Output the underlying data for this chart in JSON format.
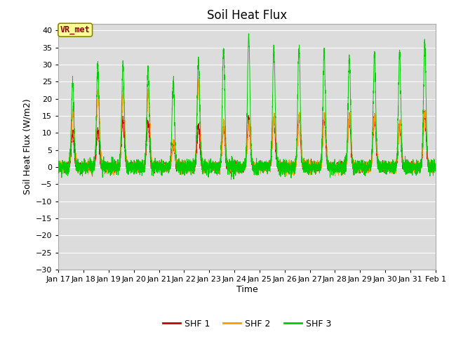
{
  "title": "Soil Heat Flux",
  "ylabel": "Soil Heat Flux (W/m2)",
  "xlabel": "Time",
  "ylim": [
    -30,
    42
  ],
  "yticks": [
    -30,
    -25,
    -20,
    -15,
    -10,
    -5,
    0,
    5,
    10,
    15,
    20,
    25,
    30,
    35,
    40
  ],
  "x_tick_labels": [
    "Jan 17",
    "Jan 18",
    "Jan 19",
    "Jan 20",
    "Jan 21",
    "Jan 22",
    "Jan 23",
    "Jan 24",
    "Jan 25",
    "Jan 26",
    "Jan 27",
    "Jan 28",
    "Jan 29",
    "Jan 30",
    "Jan 31",
    "Feb 1"
  ],
  "n_days": 15,
  "points_per_day": 288,
  "shf1_color": "#cc0000",
  "shf2_color": "#ff9900",
  "shf3_color": "#00cc00",
  "legend_labels": [
    "SHF 1",
    "SHF 2",
    "SHF 3"
  ],
  "annotation_text": "VR_met",
  "annotation_color": "#880000",
  "annotation_bg": "#ffff99",
  "plot_bg": "#dcdcdc",
  "grid_color": "#ffffff",
  "title_fontsize": 12,
  "label_fontsize": 9,
  "tick_fontsize": 8
}
